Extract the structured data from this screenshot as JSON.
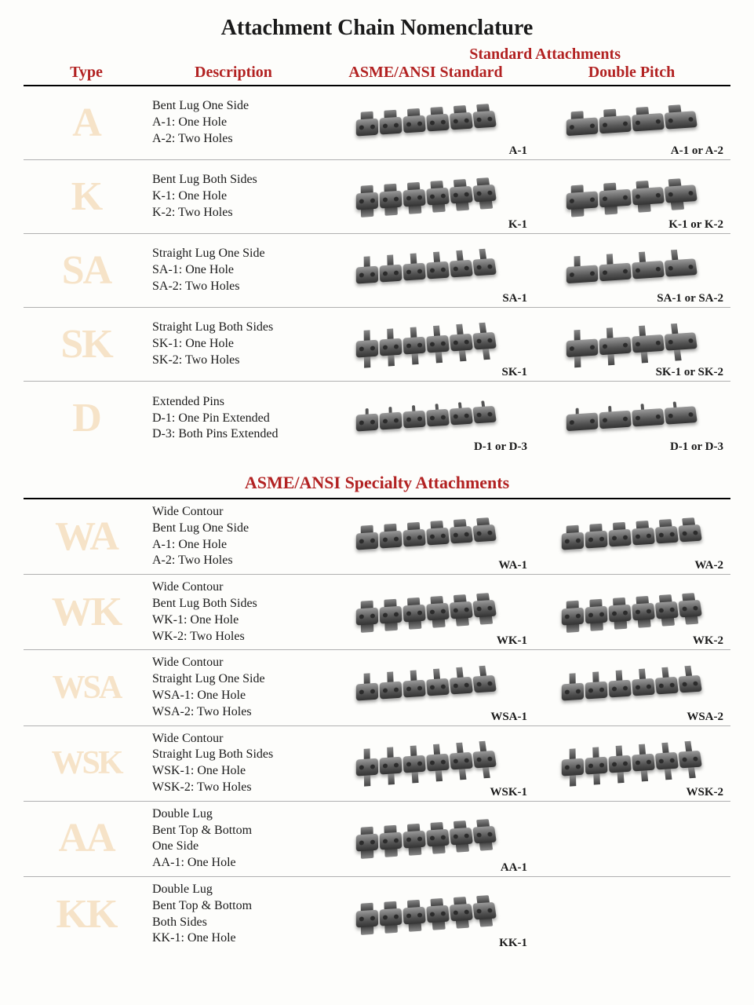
{
  "title": "Attachment Chain Nomenclature",
  "headers": {
    "type": "Type",
    "description": "Description",
    "super": "Standard Attachments",
    "col1": "ASME/ANSI Standard",
    "col2": "Double Pitch"
  },
  "section2_title": "ASME/ANSI Specialty Attachments",
  "standard_rows": [
    {
      "type": "A",
      "desc": [
        "Bent Lug One Side",
        "A-1: One Hole",
        "A-2: Two Holes"
      ],
      "cap1": "A-1",
      "cap2": "A-1 or A-2",
      "style": "bent-one"
    },
    {
      "type": "K",
      "desc": [
        "Bent Lug Both Sides",
        "K-1: One Hole",
        "K-2: Two Holes"
      ],
      "cap1": "K-1",
      "cap2": "K-1 or K-2",
      "style": "bent-both"
    },
    {
      "type": "SA",
      "desc": [
        "Straight Lug One Side",
        "SA-1: One Hole",
        "SA-2: Two Holes"
      ],
      "cap1": "SA-1",
      "cap2": "SA-1 or SA-2",
      "style": "straight-one"
    },
    {
      "type": "SK",
      "desc": [
        "Straight Lug Both Sides",
        "SK-1: One Hole",
        "SK-2: Two Holes"
      ],
      "cap1": "SK-1",
      "cap2": "SK-1 or SK-2",
      "style": "straight-both"
    },
    {
      "type": "D",
      "desc": [
        "Extended Pins",
        "D-1: One Pin Extended",
        "D-3: Both Pins Extended"
      ],
      "cap1": "D-1 or D-3",
      "cap2": "D-1 or D-3",
      "style": "pin"
    }
  ],
  "specialty_rows": [
    {
      "type": "WA",
      "desc": [
        "Wide Contour",
        "Bent Lug One Side",
        "A-1: One Hole",
        "A-2: Two Holes"
      ],
      "cap1": "WA-1",
      "cap2": "WA-2",
      "style": "bent-one"
    },
    {
      "type": "WK",
      "desc": [
        "Wide Contour",
        "Bent Lug Both Sides",
        "WK-1: One Hole",
        "WK-2: Two Holes"
      ],
      "cap1": "WK-1",
      "cap2": "WK-2",
      "style": "bent-both"
    },
    {
      "type": "WSA",
      "desc": [
        "Wide Contour",
        "Straight Lug One Side",
        "WSA-1: One Hole",
        "WSA-2: Two Holes"
      ],
      "cap1": "WSA-1",
      "cap2": "WSA-2",
      "style": "straight-one"
    },
    {
      "type": "WSK",
      "desc": [
        "Wide Contour",
        "Straight Lug Both Sides",
        "WSK-1: One Hole",
        "WSK-2: Two Holes"
      ],
      "cap1": "WSK-1",
      "cap2": "WSK-2",
      "style": "straight-both"
    },
    {
      "type": "AA",
      "desc": [
        "Double Lug",
        "Bent Top & Bottom",
        "One Side",
        "AA-1: One Hole"
      ],
      "cap1": "AA-1",
      "cap2": "",
      "style": "double-one"
    },
    {
      "type": "KK",
      "desc": [
        "Double Lug",
        "Bent Top & Bottom",
        "Both Sides",
        "KK-1: One Hole"
      ],
      "cap1": "KK-1",
      "cap2": "",
      "style": "double-both"
    }
  ],
  "colors": {
    "header_red": "#b22222",
    "type_letter": "#f6e3c8",
    "text": "#1a1a1a",
    "divider": "#b0b0b0",
    "chain_light": "#9a9a9a",
    "chain_dark": "#333333"
  }
}
